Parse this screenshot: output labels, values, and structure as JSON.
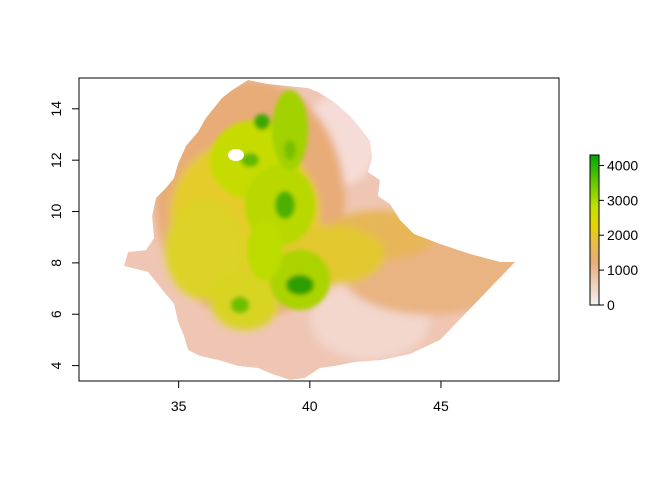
{
  "chart_data": {
    "type": "heatmap",
    "title": "",
    "xlabel": "",
    "ylabel": "",
    "xlim": [
      31.2,
      49.5
    ],
    "ylim": [
      3.4,
      15.2
    ],
    "x_ticks": [
      35,
      40,
      45
    ],
    "y_ticks": [
      4,
      6,
      8,
      10,
      12,
      14
    ],
    "grid": false,
    "legend": {
      "placement": "right",
      "type": "colorbar",
      "min": 0,
      "max": 4300,
      "ticks": [
        0,
        1000,
        2000,
        3000,
        4000
      ],
      "colors": [
        "#f2f2f2",
        "#eecdb4",
        "#e9ad7a",
        "#e8be47",
        "#e6d300",
        "#c4e200",
        "#64c800",
        "#00a600"
      ]
    },
    "colors": {
      "lowland": "#efc6b4",
      "mid": "#e8ad7f",
      "plateau": "#e6c23a",
      "highland": "#c8de00",
      "peak": "#34ad00",
      "waterbody": "#ffffff"
    }
  }
}
